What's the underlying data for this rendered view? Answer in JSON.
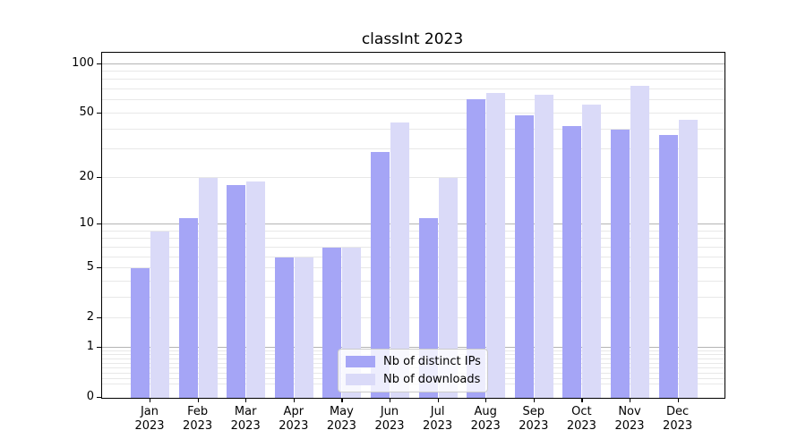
{
  "figure": {
    "title": "classInt 2023"
  },
  "chart_data": {
    "type": "bar",
    "title": "classInt 2023",
    "categories": [
      "Jan",
      "Feb",
      "Mar",
      "Apr",
      "May",
      "Jun",
      "Jul",
      "Aug",
      "Sep",
      "Oct",
      "Nov",
      "Dec"
    ],
    "category_year": "2023",
    "series": [
      {
        "name": "Nb of distinct IPs",
        "color": "#a5a5f6",
        "values": [
          5,
          11,
          18,
          6,
          7,
          29,
          11,
          61,
          49,
          42,
          40,
          37
        ]
      },
      {
        "name": "Nb of downloads",
        "color": "#dadaf8",
        "values": [
          9,
          20,
          19,
          6,
          7,
          44,
          20,
          67,
          65,
          57,
          74,
          46
        ]
      }
    ],
    "xlabel": "",
    "ylabel": "",
    "yscale": "log1p",
    "yticks": [
      0,
      1,
      2,
      5,
      10,
      20,
      50,
      100
    ],
    "ylim": [
      0,
      117
    ],
    "grid": {
      "major": [
        1,
        10,
        100
      ],
      "minor": [
        0.2,
        0.3,
        0.4,
        0.5,
        0.6,
        0.7,
        0.8,
        0.9,
        2,
        3,
        4,
        5,
        6,
        7,
        8,
        9,
        20,
        30,
        40,
        50,
        60,
        70,
        80,
        90
      ],
      "major_color": "#b4b4b4",
      "minor_color": "#e8e8e8"
    },
    "legend": {
      "position": "bottom-center",
      "entries": [
        "Nb of distinct IPs",
        "Nb of downloads"
      ]
    },
    "axis_color": "#000000",
    "background_color": "#ffffff"
  }
}
